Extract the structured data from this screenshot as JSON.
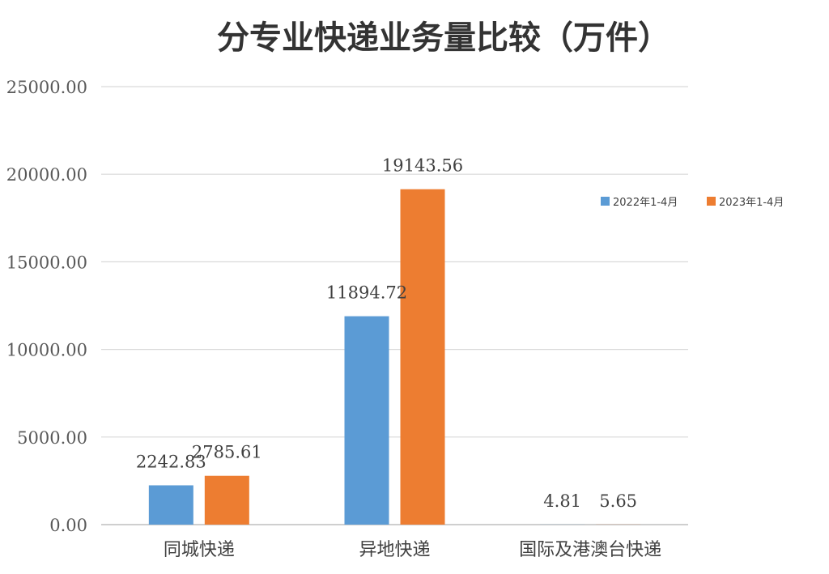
{
  "chart_data": {
    "type": "bar",
    "title": "分专业快递业务量比较（万件）",
    "xlabel": "",
    "ylabel": "",
    "categories": [
      "同城快递",
      "异地快递",
      "国际及港澳台快递"
    ],
    "series": [
      {
        "name": "2022年1-4月",
        "color": "#5B9BD5",
        "values": [
          2242.83,
          11894.72,
          4.81
        ]
      },
      {
        "name": "2023年1-4月",
        "color": "#ED7D31",
        "values": [
          2785.61,
          19143.56,
          5.65
        ]
      }
    ],
    "data_labels": [
      [
        "2242.83",
        "11894.72",
        "4.81"
      ],
      [
        "2785.61",
        "19143.56",
        "5.65"
      ]
    ],
    "ylim": [
      0,
      25000
    ],
    "yticks": [
      0,
      5000,
      10000,
      15000,
      20000,
      25000
    ],
    "ytick_labels": [
      "0.00",
      "5000.00",
      "10000.00",
      "15000.00",
      "20000.00",
      "25000.00"
    ],
    "grid": true,
    "legend_position": "right"
  }
}
